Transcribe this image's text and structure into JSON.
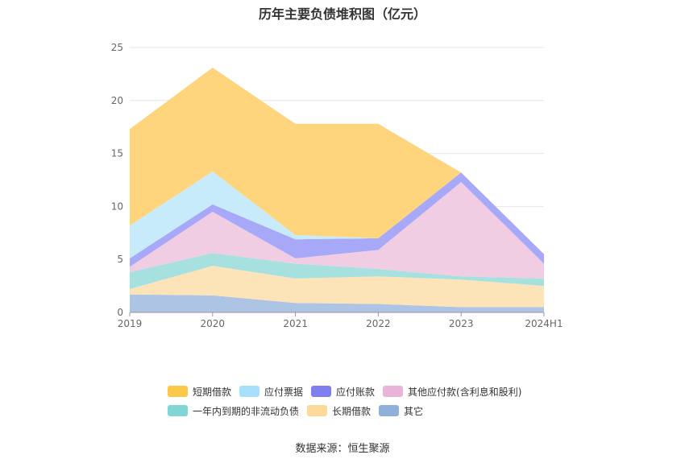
{
  "title": "历年主要负债堆积图（亿元）",
  "source": "数据来源：恒生聚源",
  "chart_data": {
    "type": "area",
    "stacked": true,
    "x": [
      "2019",
      "2020",
      "2021",
      "2022",
      "2023",
      "2024H1"
    ],
    "ylim": [
      0,
      25
    ],
    "yticks": [
      0,
      5,
      10,
      15,
      20,
      25
    ],
    "grid": true,
    "legend_position": "bottom",
    "series": [
      {
        "name": "其它",
        "color": "#aec4e4",
        "values": [
          1.7,
          1.6,
          0.9,
          0.8,
          0.5,
          0.5
        ]
      },
      {
        "name": "长期借款",
        "color": "#fde4b8",
        "values": [
          0.5,
          2.8,
          2.3,
          2.6,
          2.6,
          2.0
        ]
      },
      {
        "name": "一年内到期的非流动负债",
        "color": "#a6e1e0",
        "values": [
          1.6,
          1.2,
          1.4,
          0.7,
          0.3,
          0.7
        ]
      },
      {
        "name": "其他应付款(含利息和股利)",
        "color": "#f0cde3",
        "values": [
          0.5,
          3.9,
          0.5,
          1.8,
          8.9,
          1.4
        ]
      },
      {
        "name": "应付账款",
        "color": "#a8a8f8",
        "values": [
          0.8,
          0.7,
          1.8,
          1.1,
          0.9,
          0.9
        ]
      },
      {
        "name": "应付票据",
        "color": "#c8ebfb",
        "values": [
          3.1,
          3.1,
          0.4,
          0.0,
          0.0,
          0.0
        ]
      },
      {
        "name": "短期借款",
        "color": "#fed57d",
        "values": [
          9.1,
          9.8,
          10.5,
          10.8,
          0.0,
          0.0
        ]
      }
    ]
  },
  "legend": [
    {
      "label": "短期借款",
      "color": "#fbc849"
    },
    {
      "label": "应付票据",
      "color": "#a6e0fb"
    },
    {
      "label": "应付账款",
      "color": "#7f7ff2"
    },
    {
      "label": "其他应付款(含利息和股利)",
      "color": "#e8b4d8"
    },
    {
      "label": "一年内到期的非流动负债",
      "color": "#80d6d5"
    },
    {
      "label": "长期借款",
      "color": "#fdd99a"
    },
    {
      "label": "其它",
      "color": "#8fb0db"
    }
  ]
}
